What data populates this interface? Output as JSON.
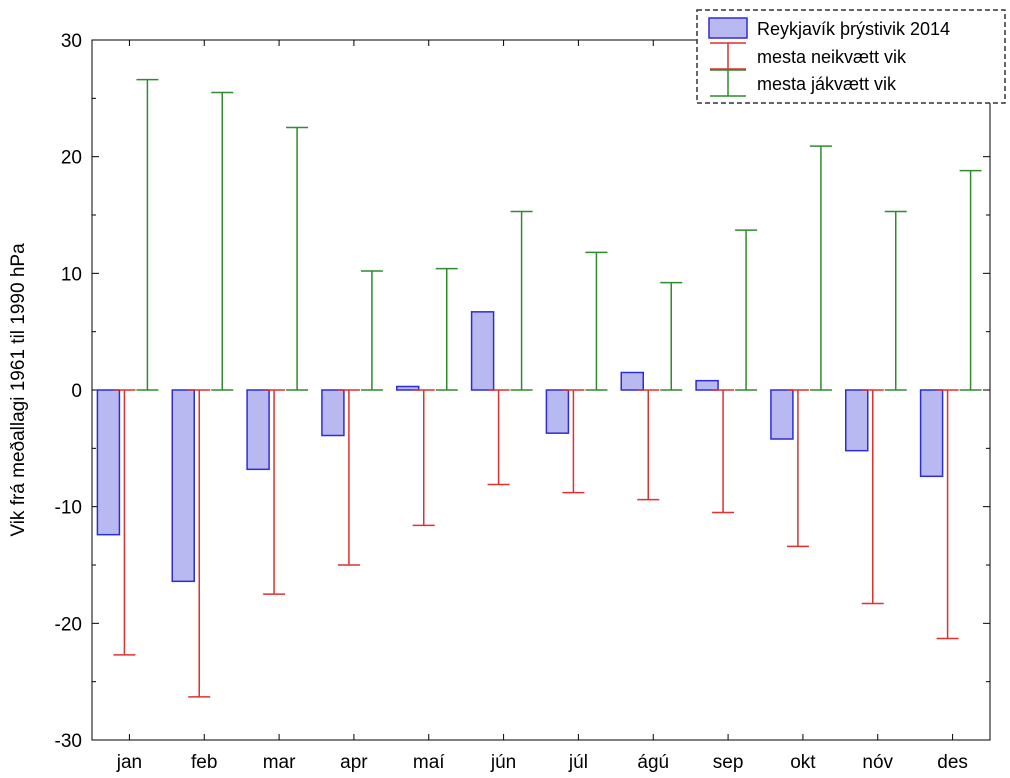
{
  "chart_data": {
    "type": "bar",
    "title": "",
    "xlabel": "",
    "ylabel": "Vik frá meðallagi 1961 til 1990 hPa",
    "ylim": [
      -30,
      30
    ],
    "yticks": [
      30,
      20,
      10,
      0,
      -10,
      -20,
      -30
    ],
    "grid": false,
    "legend_position": "top-right",
    "categories": [
      "jan",
      "feb",
      "mar",
      "apr",
      "maí",
      "jún",
      "júl",
      "ágú",
      "sep",
      "okt",
      "nóv",
      "des"
    ],
    "series": [
      {
        "name": "Reykjavík þrýstivik 2014",
        "kind": "bar",
        "color": "#2d2dd6",
        "fill": "#b9b9f2",
        "values": [
          -12.4,
          -16.4,
          -6.8,
          -3.9,
          0.3,
          6.7,
          -3.7,
          1.5,
          0.8,
          -4.2,
          -5.2,
          -7.4
        ]
      },
      {
        "name": "mesta neikvætt vik",
        "kind": "errorbar",
        "color": "#e03030",
        "values": [
          -22.7,
          -26.3,
          -17.5,
          -15.0,
          -11.6,
          -8.1,
          -8.8,
          -9.4,
          -10.5,
          -13.4,
          -18.3,
          -21.3
        ]
      },
      {
        "name": "mesta jákvætt vik",
        "kind": "errorbar",
        "color": "#2e8b2e",
        "values": [
          26.6,
          25.5,
          22.5,
          10.2,
          10.4,
          15.3,
          11.8,
          9.2,
          13.7,
          20.9,
          15.3,
          18.8
        ]
      }
    ]
  }
}
